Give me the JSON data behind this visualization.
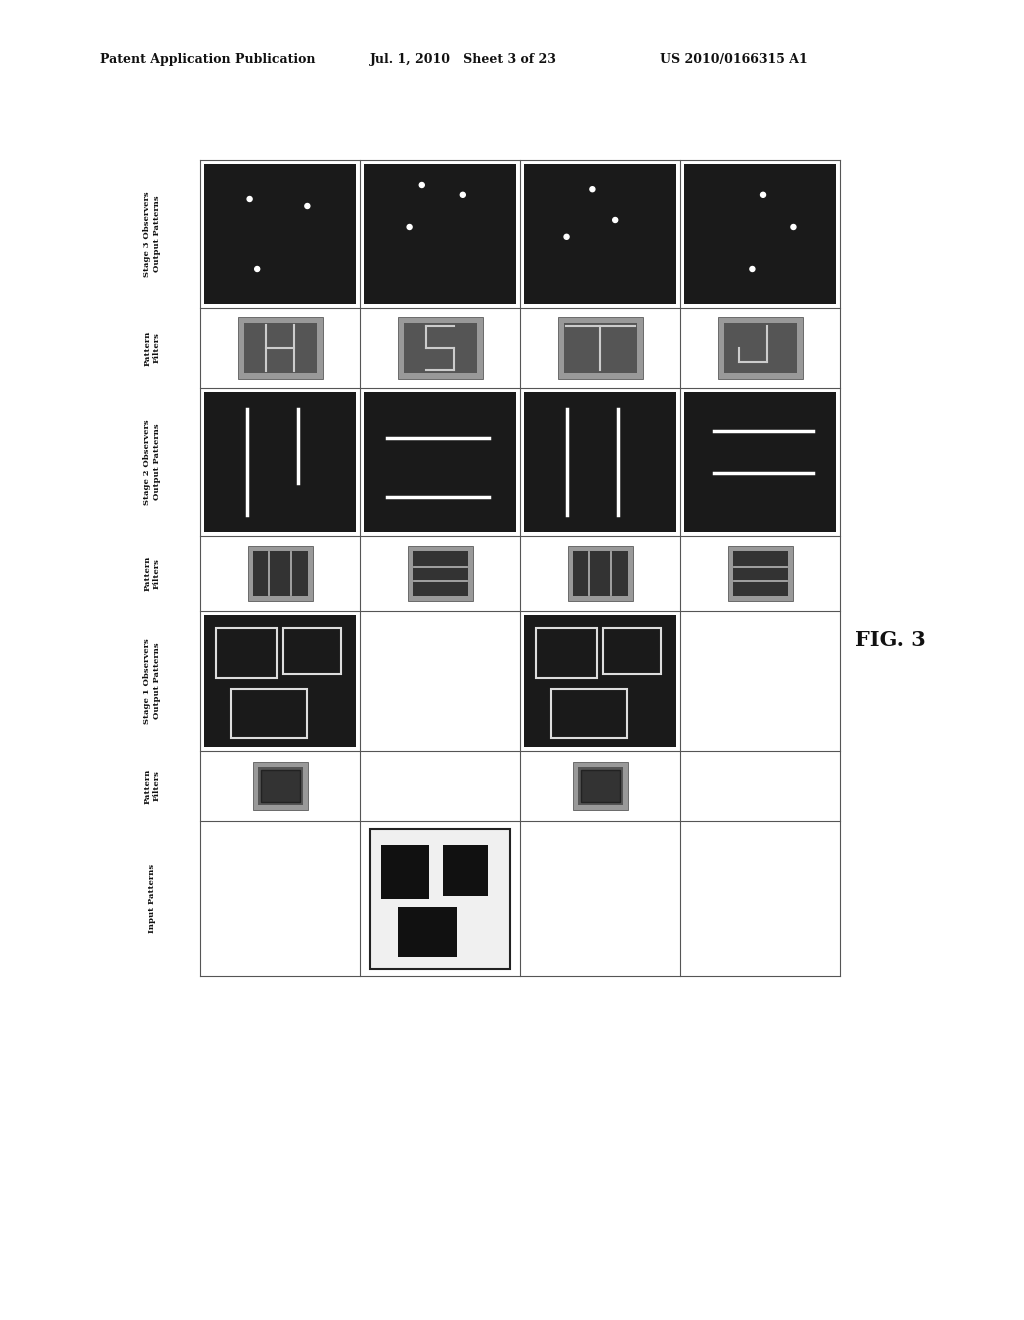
{
  "header_left": "Patent Application Publication",
  "header_center": "Jul. 1, 2010   Sheet 3 of 23",
  "header_right": "US 2010/0166315 A1",
  "fig_label": "FIG. 3",
  "background_color": "#ffffff",
  "row_labels": [
    "Stage 3 Observers\nOutput Patterns",
    "Pattern\nFilters",
    "Stage 2 Observers\nOutput Patterns",
    "Pattern\nFilters",
    "Stage 1 Observers\nOutput Patterns",
    "Pattern\nFilters",
    "Input Patterns"
  ]
}
